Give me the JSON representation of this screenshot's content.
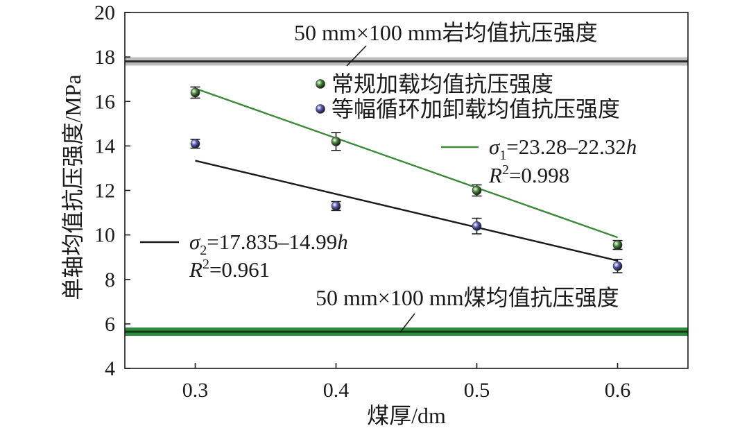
{
  "chart_data": {
    "type": "scatter",
    "xlabel": "煤厚/dm",
    "ylabel": "单轴均值抗压强度/MPa",
    "xlim": [
      0.25,
      0.65
    ],
    "ylim": [
      4,
      20
    ],
    "xticks": [
      0.3,
      0.4,
      0.5,
      0.6
    ],
    "xtick_labels": [
      "0.3",
      "0.4",
      "0.5",
      "0.6"
    ],
    "yticks": [
      4,
      6,
      8,
      10,
      12,
      14,
      16,
      18,
      20
    ],
    "ytick_labels": [
      "4",
      "6",
      "8",
      "10",
      "12",
      "14",
      "16",
      "18",
      "20"
    ],
    "grid": false,
    "legend_position": "top-right",
    "series": [
      {
        "name": "常规加载均值抗压强度",
        "color": "#4a8a3a",
        "marker": "sphere",
        "x": [
          0.3,
          0.4,
          0.5,
          0.6
        ],
        "y": [
          16.4,
          14.2,
          12.0,
          9.55
        ],
        "err": [
          0.25,
          0.4,
          0.25,
          0.2
        ],
        "fit": {
          "equation_prefix": "σ",
          "equation_sub": "1",
          "equation_rest": "=23.28–22.32",
          "equation_var": "h",
          "r2_prefix": "R",
          "r2_sup": "2",
          "r2_rest": "=0.998",
          "intercept": 23.28,
          "slope": -22.32,
          "color": "#3a8a3a"
        }
      },
      {
        "name": "等幅循环加卸载均值抗压强度",
        "color": "#5a5ab8",
        "marker": "sphere",
        "x": [
          0.3,
          0.4,
          0.5,
          0.6
        ],
        "y": [
          14.1,
          11.3,
          10.4,
          8.6
        ],
        "err": [
          0.2,
          0.2,
          0.35,
          0.3
        ],
        "fit": {
          "equation_prefix": "σ",
          "equation_sub": "2",
          "equation_rest": "=17.835–14.99",
          "equation_var": "h",
          "r2_prefix": "R",
          "r2_sup": "2",
          "r2_rest": "=0.961",
          "intercept": 17.835,
          "slope": -14.99,
          "color": "#1a1a1a"
        }
      }
    ],
    "reference_lines": [
      {
        "label": "50 mm×100 mm岩均值抗压强度",
        "value": 17.8,
        "color": "#2a2a2a",
        "band_color": "#bdbdbd"
      },
      {
        "label": "50 mm×100 mm煤均值抗压强度",
        "value": 5.65,
        "color": "#103a10",
        "band_color": "#2f8a3f"
      }
    ]
  }
}
